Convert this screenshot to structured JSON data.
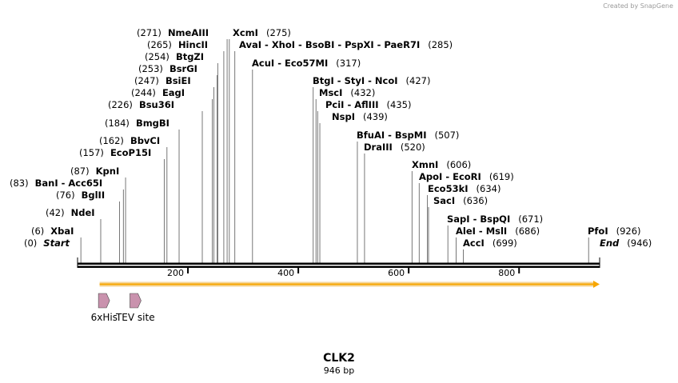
{
  "credit": "Created by SnapGene",
  "sequence": {
    "name": "CLK2",
    "length_label": "946 bp",
    "length_bp": 946
  },
  "axis": {
    "ticks": [
      200,
      400,
      600,
      800
    ]
  },
  "start_label": {
    "name": "Start",
    "pos": "(0)"
  },
  "end_label": {
    "name": "End",
    "pos": "(946)"
  },
  "sites": [
    {
      "names": [
        "NmeAIII"
      ],
      "pos_text": "(271)",
      "pos": 271
    },
    {
      "names": [
        "XcmI"
      ],
      "pos_text": "(275)",
      "pos": 275
    },
    {
      "names": [
        "HincII"
      ],
      "pos_text": "(265)",
      "pos": 265
    },
    {
      "names": [
        "AvaI",
        "XhoI",
        "BsoBI",
        "PspXI",
        "PaeR7I"
      ],
      "pos_text": "(285)",
      "pos": 285
    },
    {
      "names": [
        "BtgZI"
      ],
      "pos_text": "(254)",
      "pos": 254
    },
    {
      "names": [
        "AcuI",
        "Eco57MI"
      ],
      "pos_text": "(317)",
      "pos": 317
    },
    {
      "names": [
        "BsrGI"
      ],
      "pos_text": "(253)",
      "pos": 253
    },
    {
      "names": [
        "BsiEI"
      ],
      "pos_text": "(247)",
      "pos": 247
    },
    {
      "names": [
        "BtgI",
        "StyI",
        "NcoI"
      ],
      "pos_text": "(427)",
      "pos": 427
    },
    {
      "names": [
        "EagI"
      ],
      "pos_text": "(244)",
      "pos": 244
    },
    {
      "names": [
        "MscI"
      ],
      "pos_text": "(432)",
      "pos": 432
    },
    {
      "names": [
        "Bsu36I"
      ],
      "pos_text": "(226)",
      "pos": 226
    },
    {
      "names": [
        "PciI",
        "AflIII"
      ],
      "pos_text": "(435)",
      "pos": 435
    },
    {
      "names": [
        "NspI"
      ],
      "pos_text": "(439)",
      "pos": 439
    },
    {
      "names": [
        "BmgBI"
      ],
      "pos_text": "(184)",
      "pos": 184
    },
    {
      "names": [
        "BfuAI",
        "BspMI"
      ],
      "pos_text": "(507)",
      "pos": 507
    },
    {
      "names": [
        "BbvCI"
      ],
      "pos_text": "(162)",
      "pos": 162
    },
    {
      "names": [
        "DraIII"
      ],
      "pos_text": "(520)",
      "pos": 520
    },
    {
      "names": [
        "EcoP15I"
      ],
      "pos_text": "(157)",
      "pos": 157
    },
    {
      "names": [
        "XmnI"
      ],
      "pos_text": "(606)",
      "pos": 606
    },
    {
      "names": [
        "KpnI"
      ],
      "pos_text": "(87)",
      "pos": 87
    },
    {
      "names": [
        "ApoI",
        "EcoRI"
      ],
      "pos_text": "(619)",
      "pos": 619
    },
    {
      "names": [
        "BanI",
        "Acc65I"
      ],
      "pos_text": "(83)",
      "pos": 83
    },
    {
      "names": [
        "Eco53kI"
      ],
      "pos_text": "(634)",
      "pos": 634
    },
    {
      "names": [
        "BglII"
      ],
      "pos_text": "(76)",
      "pos": 76
    },
    {
      "names": [
        "SacI"
      ],
      "pos_text": "(636)",
      "pos": 636
    },
    {
      "names": [
        "NdeI"
      ],
      "pos_text": "(42)",
      "pos": 42
    },
    {
      "names": [
        "SapI",
        "BspQI"
      ],
      "pos_text": "(671)",
      "pos": 671
    },
    {
      "names": [
        "XbaI"
      ],
      "pos_text": "(6)",
      "pos": 6
    },
    {
      "names": [
        "AleI",
        "MslI"
      ],
      "pos_text": "(686)",
      "pos": 686
    },
    {
      "names": [
        "PfoI"
      ],
      "pos_text": "(926)",
      "pos": 926
    },
    {
      "names": [
        "AccI"
      ],
      "pos_text": "(699)",
      "pos": 699
    }
  ],
  "features": [
    {
      "name": "6xHis",
      "pos": 48
    },
    {
      "name": "TEV site",
      "pos": 105
    }
  ],
  "orf": {
    "start": 40,
    "end": 946
  },
  "colors": {
    "backbone": "#000000",
    "orf_fill": "#f7a600",
    "orf_outline": "#f5d69a",
    "feature_fill": "#c992ad",
    "feature_stroke": "#4a4a4a",
    "credit": "#9a9a9a"
  }
}
